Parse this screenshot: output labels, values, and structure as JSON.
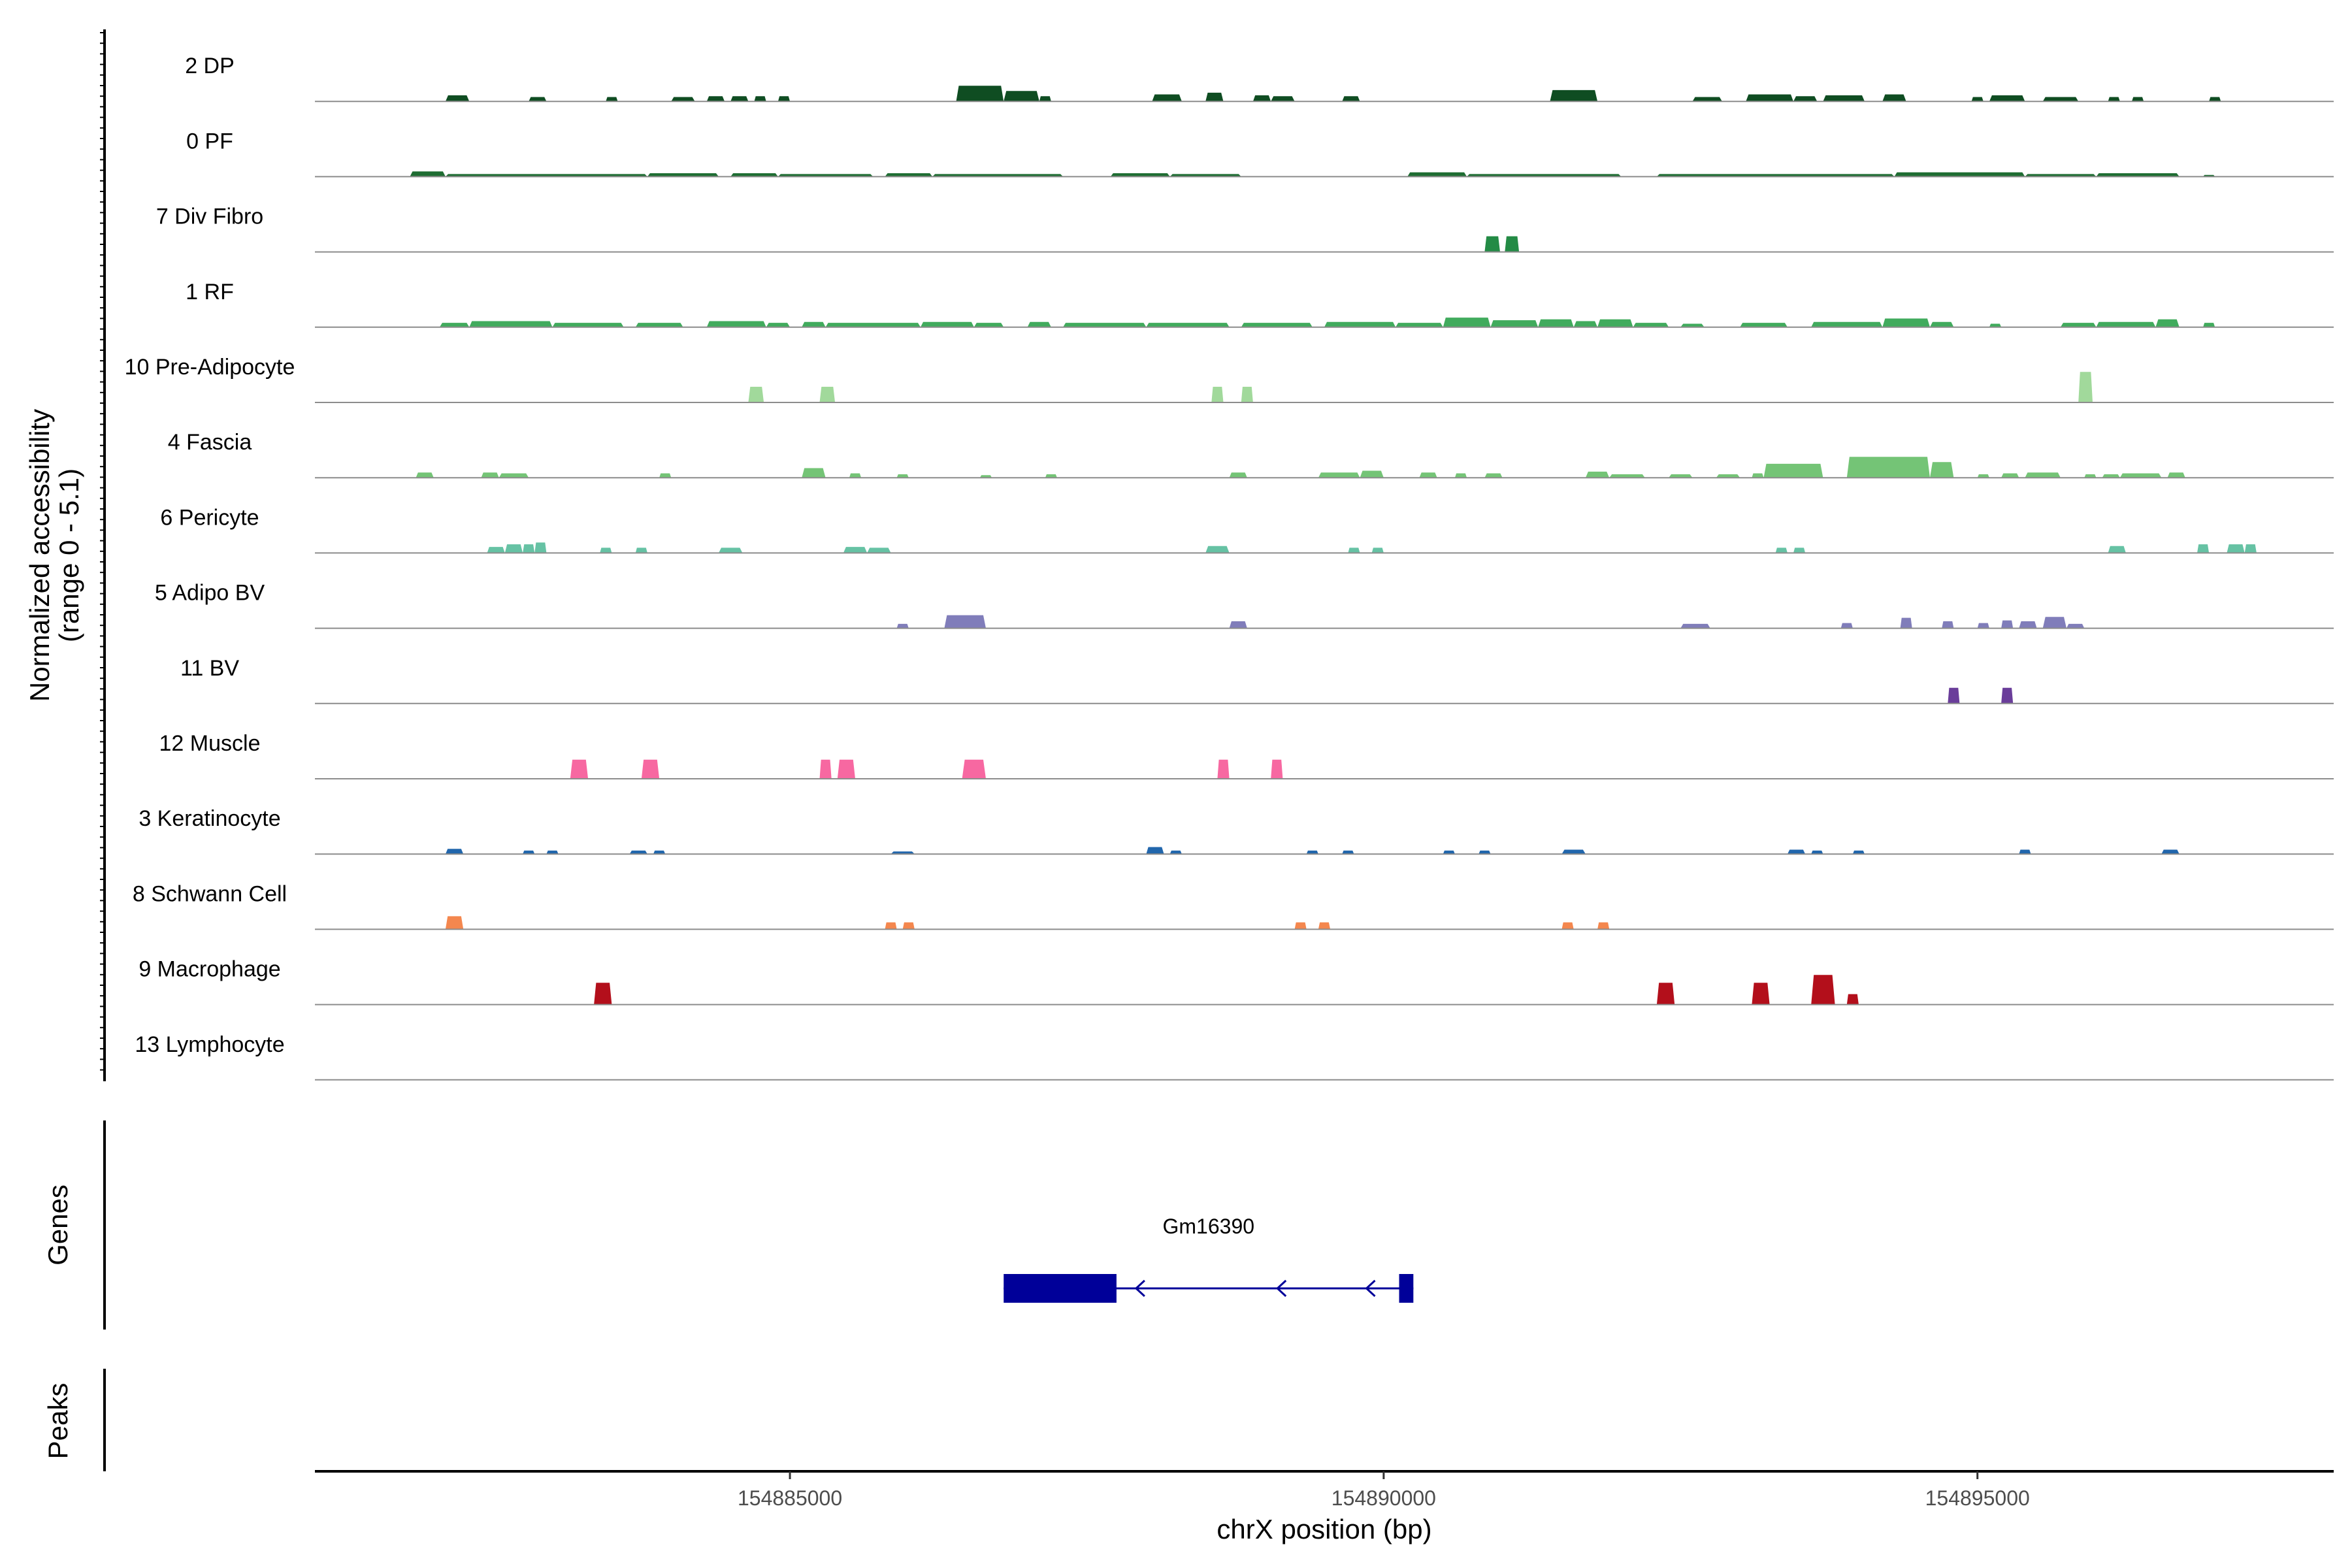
{
  "chart_data": {
    "type": "area",
    "title": "",
    "region": {
      "chrom": "chrX",
      "start": 154881000,
      "end": 154898000
    },
    "xlabel": "chrX position (bp)",
    "x_ticks": [
      154885000,
      154890000,
      154895000
    ],
    "x_tick_labels": [
      "154885000",
      "154890000",
      "154895000"
    ],
    "ylabel_line1": "Normalized accessibility",
    "ylabel_line2": "(range 0 - 5.1)",
    "y_range": [
      0,
      5.1
    ],
    "genes_label": "Genes",
    "peaks_label": "Peaks",
    "series": [
      {
        "name": "2 DP",
        "color": "#0f4d22",
        "peaks": [
          [
            154882100,
            154882300,
            0.7
          ],
          [
            154882800,
            154882950,
            0.5
          ],
          [
            154883450,
            154883550,
            0.5
          ],
          [
            154884000,
            154884200,
            0.5
          ],
          [
            154884300,
            154884450,
            0.6
          ],
          [
            154884500,
            154884650,
            0.6
          ],
          [
            154884700,
            154884800,
            0.6
          ],
          [
            154884900,
            154885000,
            0.6
          ],
          [
            154886400,
            154886800,
            1.8
          ],
          [
            154886800,
            154887100,
            1.2
          ],
          [
            154887100,
            154887200,
            0.6
          ],
          [
            154888050,
            154888300,
            0.8
          ],
          [
            154888500,
            154888650,
            1.0
          ],
          [
            154888900,
            154889050,
            0.7
          ],
          [
            154889050,
            154889250,
            0.6
          ],
          [
            154889650,
            154889800,
            0.6
          ],
          [
            154891400,
            154891800,
            1.3
          ],
          [
            154892600,
            154892850,
            0.5
          ],
          [
            154893050,
            154893450,
            0.8
          ],
          [
            154893450,
            154893650,
            0.6
          ],
          [
            154893700,
            154894050,
            0.7
          ],
          [
            154894200,
            154894400,
            0.8
          ],
          [
            154894950,
            154895050,
            0.5
          ],
          [
            154895100,
            154895400,
            0.7
          ],
          [
            154895550,
            154895850,
            0.5
          ],
          [
            154896100,
            154896200,
            0.5
          ],
          [
            154896300,
            154896400,
            0.5
          ],
          [
            154896950,
            154897050,
            0.5
          ]
        ]
      },
      {
        "name": "0 PF",
        "color": "#1e6d32",
        "peaks": [
          [
            154881800,
            154882100,
            0.6
          ],
          [
            154882100,
            154883800,
            0.3
          ],
          [
            154883800,
            154884400,
            0.4
          ],
          [
            154884500,
            154884900,
            0.4
          ],
          [
            154884900,
            154885700,
            0.3
          ],
          [
            154885800,
            154886200,
            0.4
          ],
          [
            154886200,
            154887300,
            0.3
          ],
          [
            154887700,
            154888200,
            0.4
          ],
          [
            154888200,
            154888800,
            0.3
          ],
          [
            154890200,
            154890700,
            0.5
          ],
          [
            154890700,
            154892000,
            0.3
          ],
          [
            154892300,
            154894300,
            0.3
          ],
          [
            154894300,
            154895400,
            0.5
          ],
          [
            154895400,
            154896000,
            0.3
          ],
          [
            154896000,
            154896700,
            0.4
          ],
          [
            154896900,
            154897000,
            0.2
          ]
        ]
      },
      {
        "name": "7 Div Fibro",
        "color": "#238b45",
        "peaks": [
          [
            154890850,
            154890980,
            1.8
          ],
          [
            154891020,
            154891140,
            1.8
          ]
        ]
      },
      {
        "name": "1 RF",
        "color": "#41ab5d",
        "peaks": [
          [
            154882050,
            154882300,
            0.5
          ],
          [
            154882300,
            154883000,
            0.7
          ],
          [
            154883000,
            154883600,
            0.5
          ],
          [
            154883700,
            154884100,
            0.5
          ],
          [
            154884300,
            154884800,
            0.7
          ],
          [
            154884800,
            154885000,
            0.5
          ],
          [
            154885100,
            154885300,
            0.6
          ],
          [
            154885300,
            154886100,
            0.5
          ],
          [
            154886100,
            154886550,
            0.6
          ],
          [
            154886550,
            154886800,
            0.5
          ],
          [
            154887000,
            154887200,
            0.6
          ],
          [
            154887300,
            154888000,
            0.5
          ],
          [
            154888000,
            154888700,
            0.5
          ],
          [
            154888800,
            154889400,
            0.5
          ],
          [
            154889500,
            154890100,
            0.6
          ],
          [
            154890100,
            154890500,
            0.5
          ],
          [
            154890500,
            154890900,
            1.1
          ],
          [
            154890900,
            154891300,
            0.8
          ],
          [
            154891300,
            154891600,
            0.9
          ],
          [
            154891600,
            154891800,
            0.7
          ],
          [
            154891800,
            154892100,
            0.9
          ],
          [
            154892100,
            154892400,
            0.5
          ],
          [
            154892500,
            154892700,
            0.4
          ],
          [
            154893000,
            154893400,
            0.5
          ],
          [
            154893600,
            154894200,
            0.6
          ],
          [
            154894200,
            154894600,
            1.0
          ],
          [
            154894600,
            154894800,
            0.6
          ],
          [
            154895100,
            154895200,
            0.4
          ],
          [
            154895700,
            154896000,
            0.5
          ],
          [
            154896000,
            154896500,
            0.6
          ],
          [
            154896500,
            154896700,
            0.9
          ],
          [
            154896900,
            154897000,
            0.5
          ]
        ]
      },
      {
        "name": "10 Pre-Adipocyte",
        "color": "#a1d99b",
        "peaks": [
          [
            154884650,
            154884780,
            1.8
          ],
          [
            154885250,
            154885380,
            1.8
          ],
          [
            154888550,
            154888650,
            1.8
          ],
          [
            154888800,
            154888900,
            1.8
          ],
          [
            154895850,
            154895970,
            3.5
          ]
        ]
      },
      {
        "name": "4 Fascia",
        "color": "#74c476",
        "peaks": [
          [
            154881850,
            154882000,
            0.6
          ],
          [
            154882400,
            154882550,
            0.6
          ],
          [
            154882550,
            154882800,
            0.5
          ],
          [
            154883900,
            154884000,
            0.5
          ],
          [
            154885100,
            154885300,
            1.1
          ],
          [
            154885500,
            154885600,
            0.5
          ],
          [
            154885900,
            154886000,
            0.4
          ],
          [
            154886600,
            154886700,
            0.3
          ],
          [
            154887150,
            154887250,
            0.4
          ],
          [
            154888700,
            154888850,
            0.6
          ],
          [
            154889450,
            154889800,
            0.6
          ],
          [
            154889800,
            154890000,
            0.8
          ],
          [
            154890300,
            154890450,
            0.6
          ],
          [
            154890600,
            154890700,
            0.5
          ],
          [
            154890850,
            154891000,
            0.5
          ],
          [
            154891700,
            154891900,
            0.7
          ],
          [
            154891900,
            154892200,
            0.4
          ],
          [
            154892400,
            154892600,
            0.4
          ],
          [
            154892800,
            154893000,
            0.4
          ],
          [
            154893100,
            154893200,
            0.5
          ],
          [
            154893200,
            154893700,
            1.6
          ],
          [
            154893900,
            154894600,
            2.4
          ],
          [
            154894600,
            154894800,
            1.8
          ],
          [
            154895000,
            154895100,
            0.4
          ],
          [
            154895200,
            154895350,
            0.5
          ],
          [
            154895400,
            154895700,
            0.6
          ],
          [
            154895900,
            154896000,
            0.4
          ],
          [
            154896050,
            154896200,
            0.4
          ],
          [
            154896200,
            154896550,
            0.5
          ],
          [
            154896600,
            154896750,
            0.6
          ]
        ]
      },
      {
        "name": "6 Pericyte",
        "color": "#66c2a4",
        "peaks": [
          [
            154882450,
            154882600,
            0.7
          ],
          [
            154882600,
            154882750,
            1.0
          ],
          [
            154882750,
            154882850,
            1.0
          ],
          [
            154882850,
            154882950,
            1.2
          ],
          [
            154883400,
            154883500,
            0.6
          ],
          [
            154883700,
            154883800,
            0.6
          ],
          [
            154884400,
            154884600,
            0.6
          ],
          [
            154885450,
            154885650,
            0.7
          ],
          [
            154885650,
            154885850,
            0.6
          ],
          [
            154888500,
            154888700,
            0.8
          ],
          [
            154889700,
            154889800,
            0.6
          ],
          [
            154889900,
            154890000,
            0.6
          ],
          [
            154893300,
            154893400,
            0.6
          ],
          [
            154893450,
            154893550,
            0.6
          ],
          [
            154896100,
            154896250,
            0.8
          ],
          [
            154896850,
            154896950,
            1.0
          ],
          [
            154897100,
            154897250,
            1.0
          ],
          [
            154897250,
            154897350,
            1.0
          ]
        ]
      },
      {
        "name": "5 Adipo BV",
        "color": "#807dba",
        "peaks": [
          [
            154885900,
            154886000,
            0.5
          ],
          [
            154886300,
            154886650,
            1.5
          ],
          [
            154888700,
            154888850,
            0.8
          ],
          [
            154892500,
            154892750,
            0.5
          ],
          [
            154893850,
            154893950,
            0.6
          ],
          [
            154894350,
            154894450,
            1.2
          ],
          [
            154894700,
            154894800,
            0.8
          ],
          [
            154895000,
            154895100,
            0.6
          ],
          [
            154895200,
            154895300,
            0.9
          ],
          [
            154895350,
            154895500,
            0.8
          ],
          [
            154895550,
            154895750,
            1.3
          ],
          [
            154895750,
            154895900,
            0.5
          ]
        ]
      },
      {
        "name": "11 BV",
        "color": "#6a3d9a",
        "peaks": [
          [
            154894750,
            154894850,
            1.8
          ],
          [
            154895200,
            154895300,
            1.8
          ]
        ]
      },
      {
        "name": "12 Muscle",
        "color": "#f768a1",
        "peaks": [
          [
            154883150,
            154883300,
            2.2
          ],
          [
            154883750,
            154883900,
            2.2
          ],
          [
            154885250,
            154885350,
            2.2
          ],
          [
            154885400,
            154885550,
            2.2
          ],
          [
            154886450,
            154886650,
            2.2
          ],
          [
            154888600,
            154888700,
            2.2
          ],
          [
            154889050,
            154889150,
            2.2
          ]
        ]
      },
      {
        "name": "3 Keratinocyte",
        "color": "#2166ac",
        "peaks": [
          [
            154882100,
            154882250,
            0.6
          ],
          [
            154882750,
            154882850,
            0.4
          ],
          [
            154882950,
            154883050,
            0.4
          ],
          [
            154883650,
            154883800,
            0.4
          ],
          [
            154883850,
            154883950,
            0.4
          ],
          [
            154885850,
            154886050,
            0.3
          ],
          [
            154888000,
            154888150,
            0.8
          ],
          [
            154888200,
            154888300,
            0.4
          ],
          [
            154889350,
            154889450,
            0.4
          ],
          [
            154889650,
            154889750,
            0.4
          ],
          [
            154890500,
            154890600,
            0.4
          ],
          [
            154890800,
            154890900,
            0.4
          ],
          [
            154891500,
            154891700,
            0.5
          ],
          [
            154893400,
            154893550,
            0.5
          ],
          [
            154893600,
            154893700,
            0.4
          ],
          [
            154893950,
            154894050,
            0.4
          ],
          [
            154895350,
            154895450,
            0.5
          ],
          [
            154896550,
            154896700,
            0.5
          ]
        ]
      },
      {
        "name": "8 Schwann Cell",
        "color": "#f4874e",
        "peaks": [
          [
            154882100,
            154882250,
            1.5
          ],
          [
            154885800,
            154885900,
            0.8
          ],
          [
            154885950,
            154886050,
            0.8
          ],
          [
            154889250,
            154889350,
            0.8
          ],
          [
            154889450,
            154889550,
            0.8
          ],
          [
            154891500,
            154891600,
            0.8
          ],
          [
            154891800,
            154891900,
            0.8
          ]
        ]
      },
      {
        "name": "9 Macrophage",
        "color": "#b30f1b",
        "peaks": [
          [
            154883350,
            154883500,
            2.5
          ],
          [
            154892300,
            154892450,
            2.5
          ],
          [
            154893100,
            154893250,
            2.5
          ],
          [
            154893600,
            154893800,
            3.4
          ],
          [
            154893900,
            154894000,
            1.2
          ]
        ]
      },
      {
        "name": "13 Lymphocyte",
        "color": "#444444",
        "peaks": []
      }
    ],
    "gene": {
      "name": "Gm16390",
      "color": "#000099",
      "start": 154886800,
      "end": 154890250,
      "strand": "-",
      "exons": [
        [
          154886800,
          154887750
        ],
        [
          154890130,
          154890250
        ]
      ]
    }
  }
}
